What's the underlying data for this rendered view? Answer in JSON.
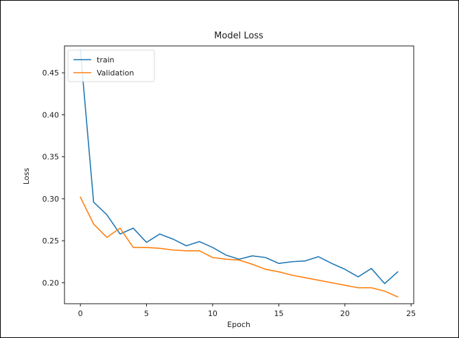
{
  "chart_data": {
    "type": "line",
    "title": "Model Loss",
    "xlabel": "Epoch",
    "ylabel": "Loss",
    "xlim": [
      -1.2,
      25.2
    ],
    "ylim": [
      0.175,
      0.482
    ],
    "xticks": [
      0,
      5,
      10,
      15,
      20,
      25
    ],
    "yticks": [
      0.2,
      0.25,
      0.3,
      0.35,
      0.4,
      0.45
    ],
    "xtick_labels": [
      "0",
      "5",
      "10",
      "15",
      "20",
      "25"
    ],
    "ytick_labels": [
      "0.20",
      "0.25",
      "0.30",
      "0.35",
      "0.40",
      "0.45"
    ],
    "grid": false,
    "legend_position": "top-left",
    "x": [
      0,
      1,
      2,
      3,
      4,
      5,
      6,
      7,
      8,
      9,
      10,
      11,
      12,
      13,
      14,
      15,
      16,
      17,
      18,
      19,
      20,
      21,
      22,
      23,
      24
    ],
    "series": [
      {
        "name": "train",
        "color": "#1f77b4",
        "values": [
          0.477,
          0.296,
          0.281,
          0.258,
          0.265,
          0.248,
          0.258,
          0.252,
          0.244,
          0.249,
          0.242,
          0.233,
          0.228,
          0.232,
          0.23,
          0.223,
          0.225,
          0.226,
          0.231,
          0.223,
          0.216,
          0.207,
          0.217,
          0.199,
          0.213
        ]
      },
      {
        "name": "Validation",
        "color": "#ff7f0e",
        "values": [
          0.302,
          0.27,
          0.254,
          0.265,
          0.242,
          0.242,
          0.241,
          0.239,
          0.238,
          0.238,
          0.23,
          0.228,
          0.227,
          0.222,
          0.216,
          0.213,
          0.209,
          0.206,
          0.203,
          0.2,
          0.197,
          0.194,
          0.194,
          0.19,
          0.183
        ]
      }
    ]
  }
}
